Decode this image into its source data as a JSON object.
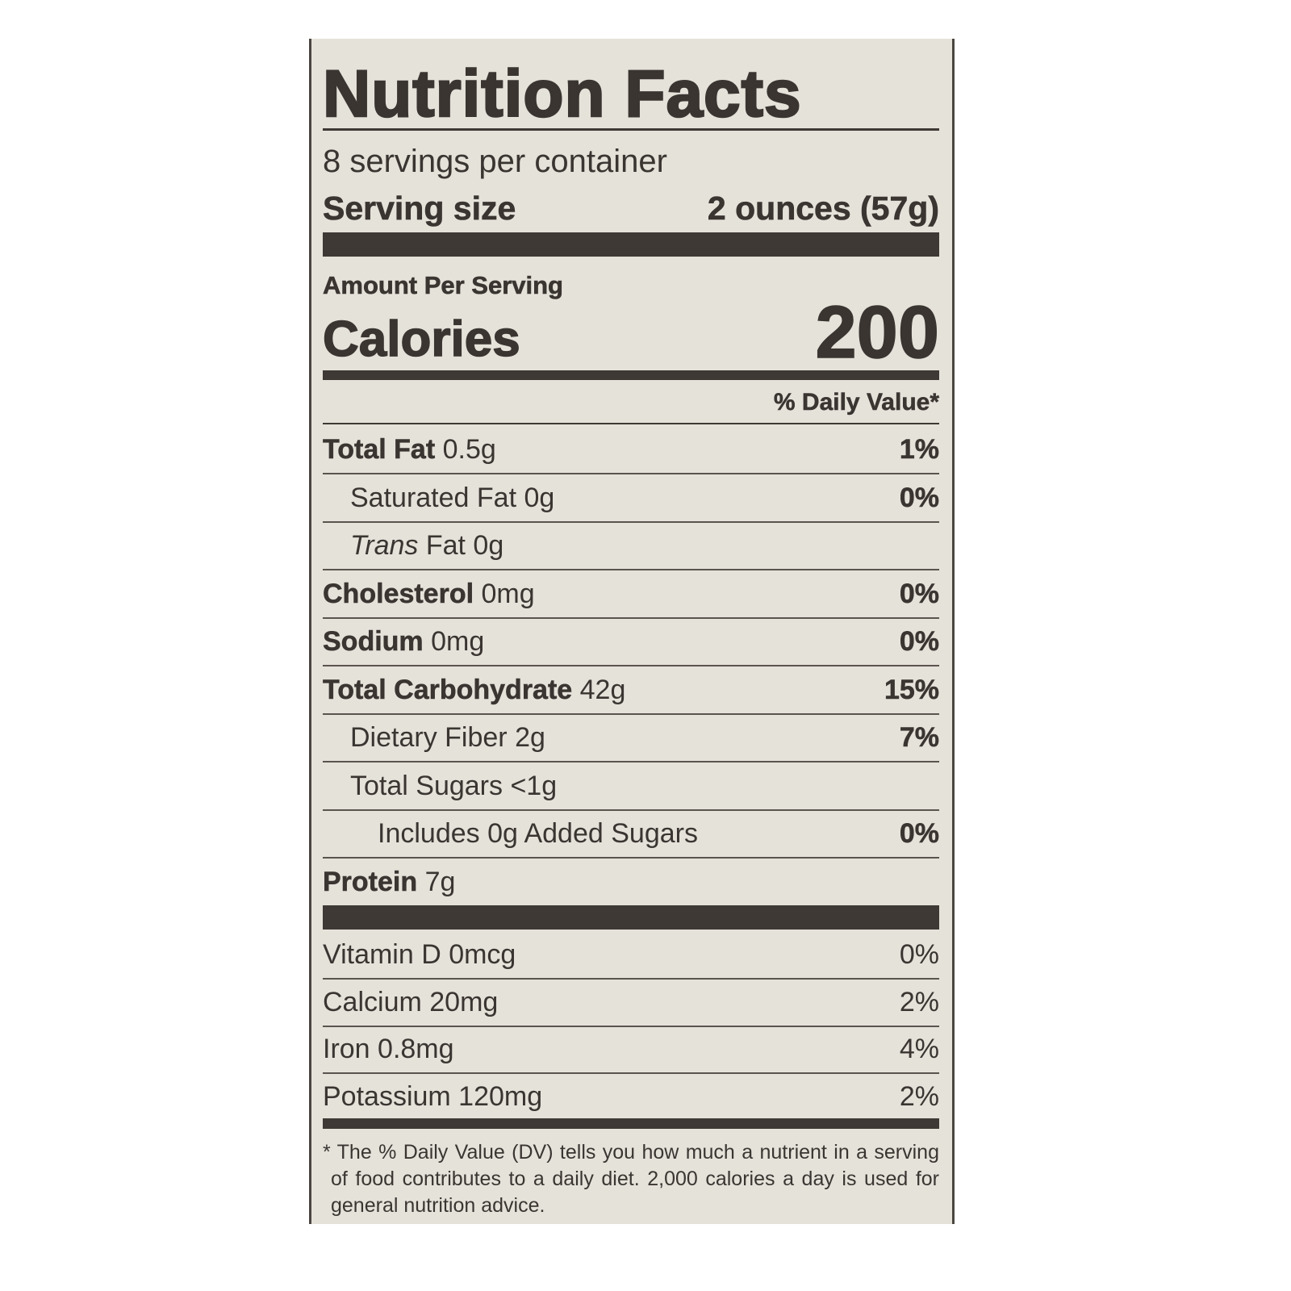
{
  "label": {
    "title": "Nutrition Facts",
    "servings_per_container": "8 servings per container",
    "serving_size_label": "Serving size",
    "serving_size_value": "2 ounces (57g)",
    "amount_per_serving": "Amount Per Serving",
    "calories_label": "Calories",
    "calories_value": "200",
    "daily_value_header": "% Daily Value*",
    "nutrients": [
      {
        "name": "Total Fat",
        "amount": "0.5g",
        "dv": "1%",
        "bold": true,
        "indent": 0
      },
      {
        "name": "Saturated Fat",
        "amount": "0g",
        "dv": "0%",
        "bold": false,
        "indent": 1
      },
      {
        "name": "Trans",
        "name_suffix": "Fat",
        "amount": "0g",
        "dv": "",
        "bold": false,
        "indent": 1
      },
      {
        "name": "Cholesterol",
        "amount": "0mg",
        "dv": "0%",
        "bold": true,
        "indent": 0
      },
      {
        "name": "Sodium",
        "amount": "0mg",
        "dv": "0%",
        "bold": true,
        "indent": 0
      },
      {
        "name": "Total Carbohydrate",
        "amount": "42g",
        "dv": "15%",
        "bold": true,
        "indent": 0
      },
      {
        "name": "Dietary Fiber",
        "amount": "2g",
        "dv": "7%",
        "bold": false,
        "indent": 1
      },
      {
        "name": "Total Sugars",
        "amount": "<1g",
        "dv": "",
        "bold": false,
        "indent": 1
      },
      {
        "name": "Includes 0g Added Sugars",
        "amount": "",
        "dv": "0%",
        "bold": false,
        "indent": 2
      },
      {
        "name": "Protein",
        "amount": "7g",
        "dv": "",
        "bold": true,
        "indent": 0
      }
    ],
    "vitamins": [
      {
        "text": "Vitamin D 0mcg",
        "dv": "0%"
      },
      {
        "text": "Calcium 20mg",
        "dv": "2%"
      },
      {
        "text": "Iron 0.8mg",
        "dv": "4%"
      },
      {
        "text": "Potassium 120mg",
        "dv": "2%"
      }
    ],
    "footnote": "* The % Daily Value (DV) tells you how much a nutrient in a serving of food contributes to a daily diet. 2,000 calories a day is used for general nutrition advice."
  },
  "colors": {
    "background": "#e5e2da",
    "ink": "#3a3531"
  }
}
